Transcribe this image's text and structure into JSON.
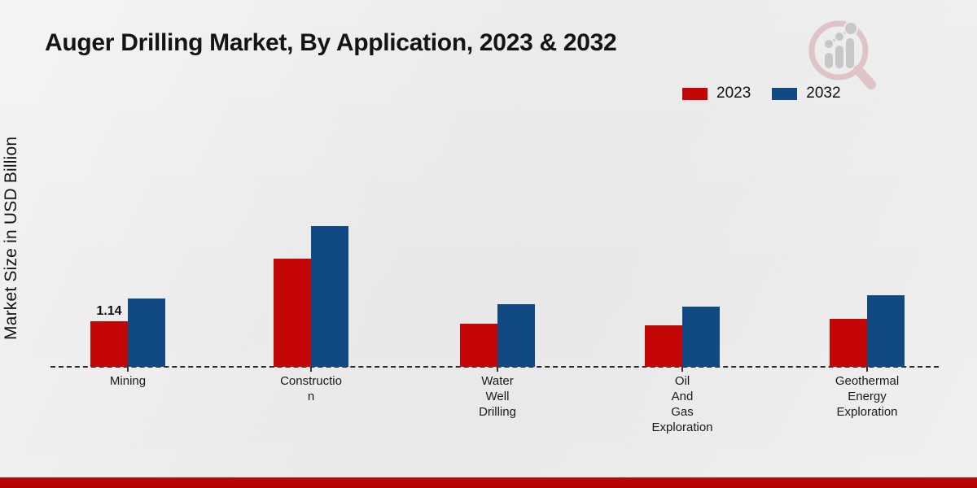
{
  "page": {
    "title": "Auger Drilling Market, By Application, 2023 & 2032"
  },
  "legend": {
    "items": [
      {
        "label": "2023",
        "color": "#c40606"
      },
      {
        "label": "2032",
        "color": "#114a82"
      }
    ]
  },
  "chart_data": {
    "type": "bar",
    "title": "Auger Drilling Market, By Application, 2023 & 2032",
    "xlabel": "",
    "ylabel": "Market Size in USD Billion",
    "unit": "USD Billion",
    "categories": [
      "Mining",
      "Construction",
      "Water Well Drilling",
      "Oil And Gas Exploration",
      "Geothermal Energy Exploration"
    ],
    "category_display_labels": [
      "Mining",
      "Constructio\nn",
      "Water\nWell\nDrilling",
      "Oil\nAnd\nGas\nExploration",
      "Geothermal\nEnergy\nExploration"
    ],
    "series": [
      {
        "name": "2023",
        "color": "#c40606",
        "values": [
          1.14,
          2.71,
          1.08,
          1.04,
          1.2
        ]
      },
      {
        "name": "2032",
        "color": "#114a82",
        "values": [
          1.71,
          3.52,
          1.57,
          1.51,
          1.79
        ]
      }
    ],
    "data_labels": [
      {
        "category": "Mining",
        "series": "2023",
        "text": "1.14"
      }
    ],
    "ylim": [
      0,
      4
    ],
    "grid": false,
    "baseline_style": "dashed",
    "legend_position": "top-right"
  },
  "icons": {
    "logo": "magnifier-bar-chart-logo"
  },
  "footer": {
    "accent_color": "#b30505"
  }
}
